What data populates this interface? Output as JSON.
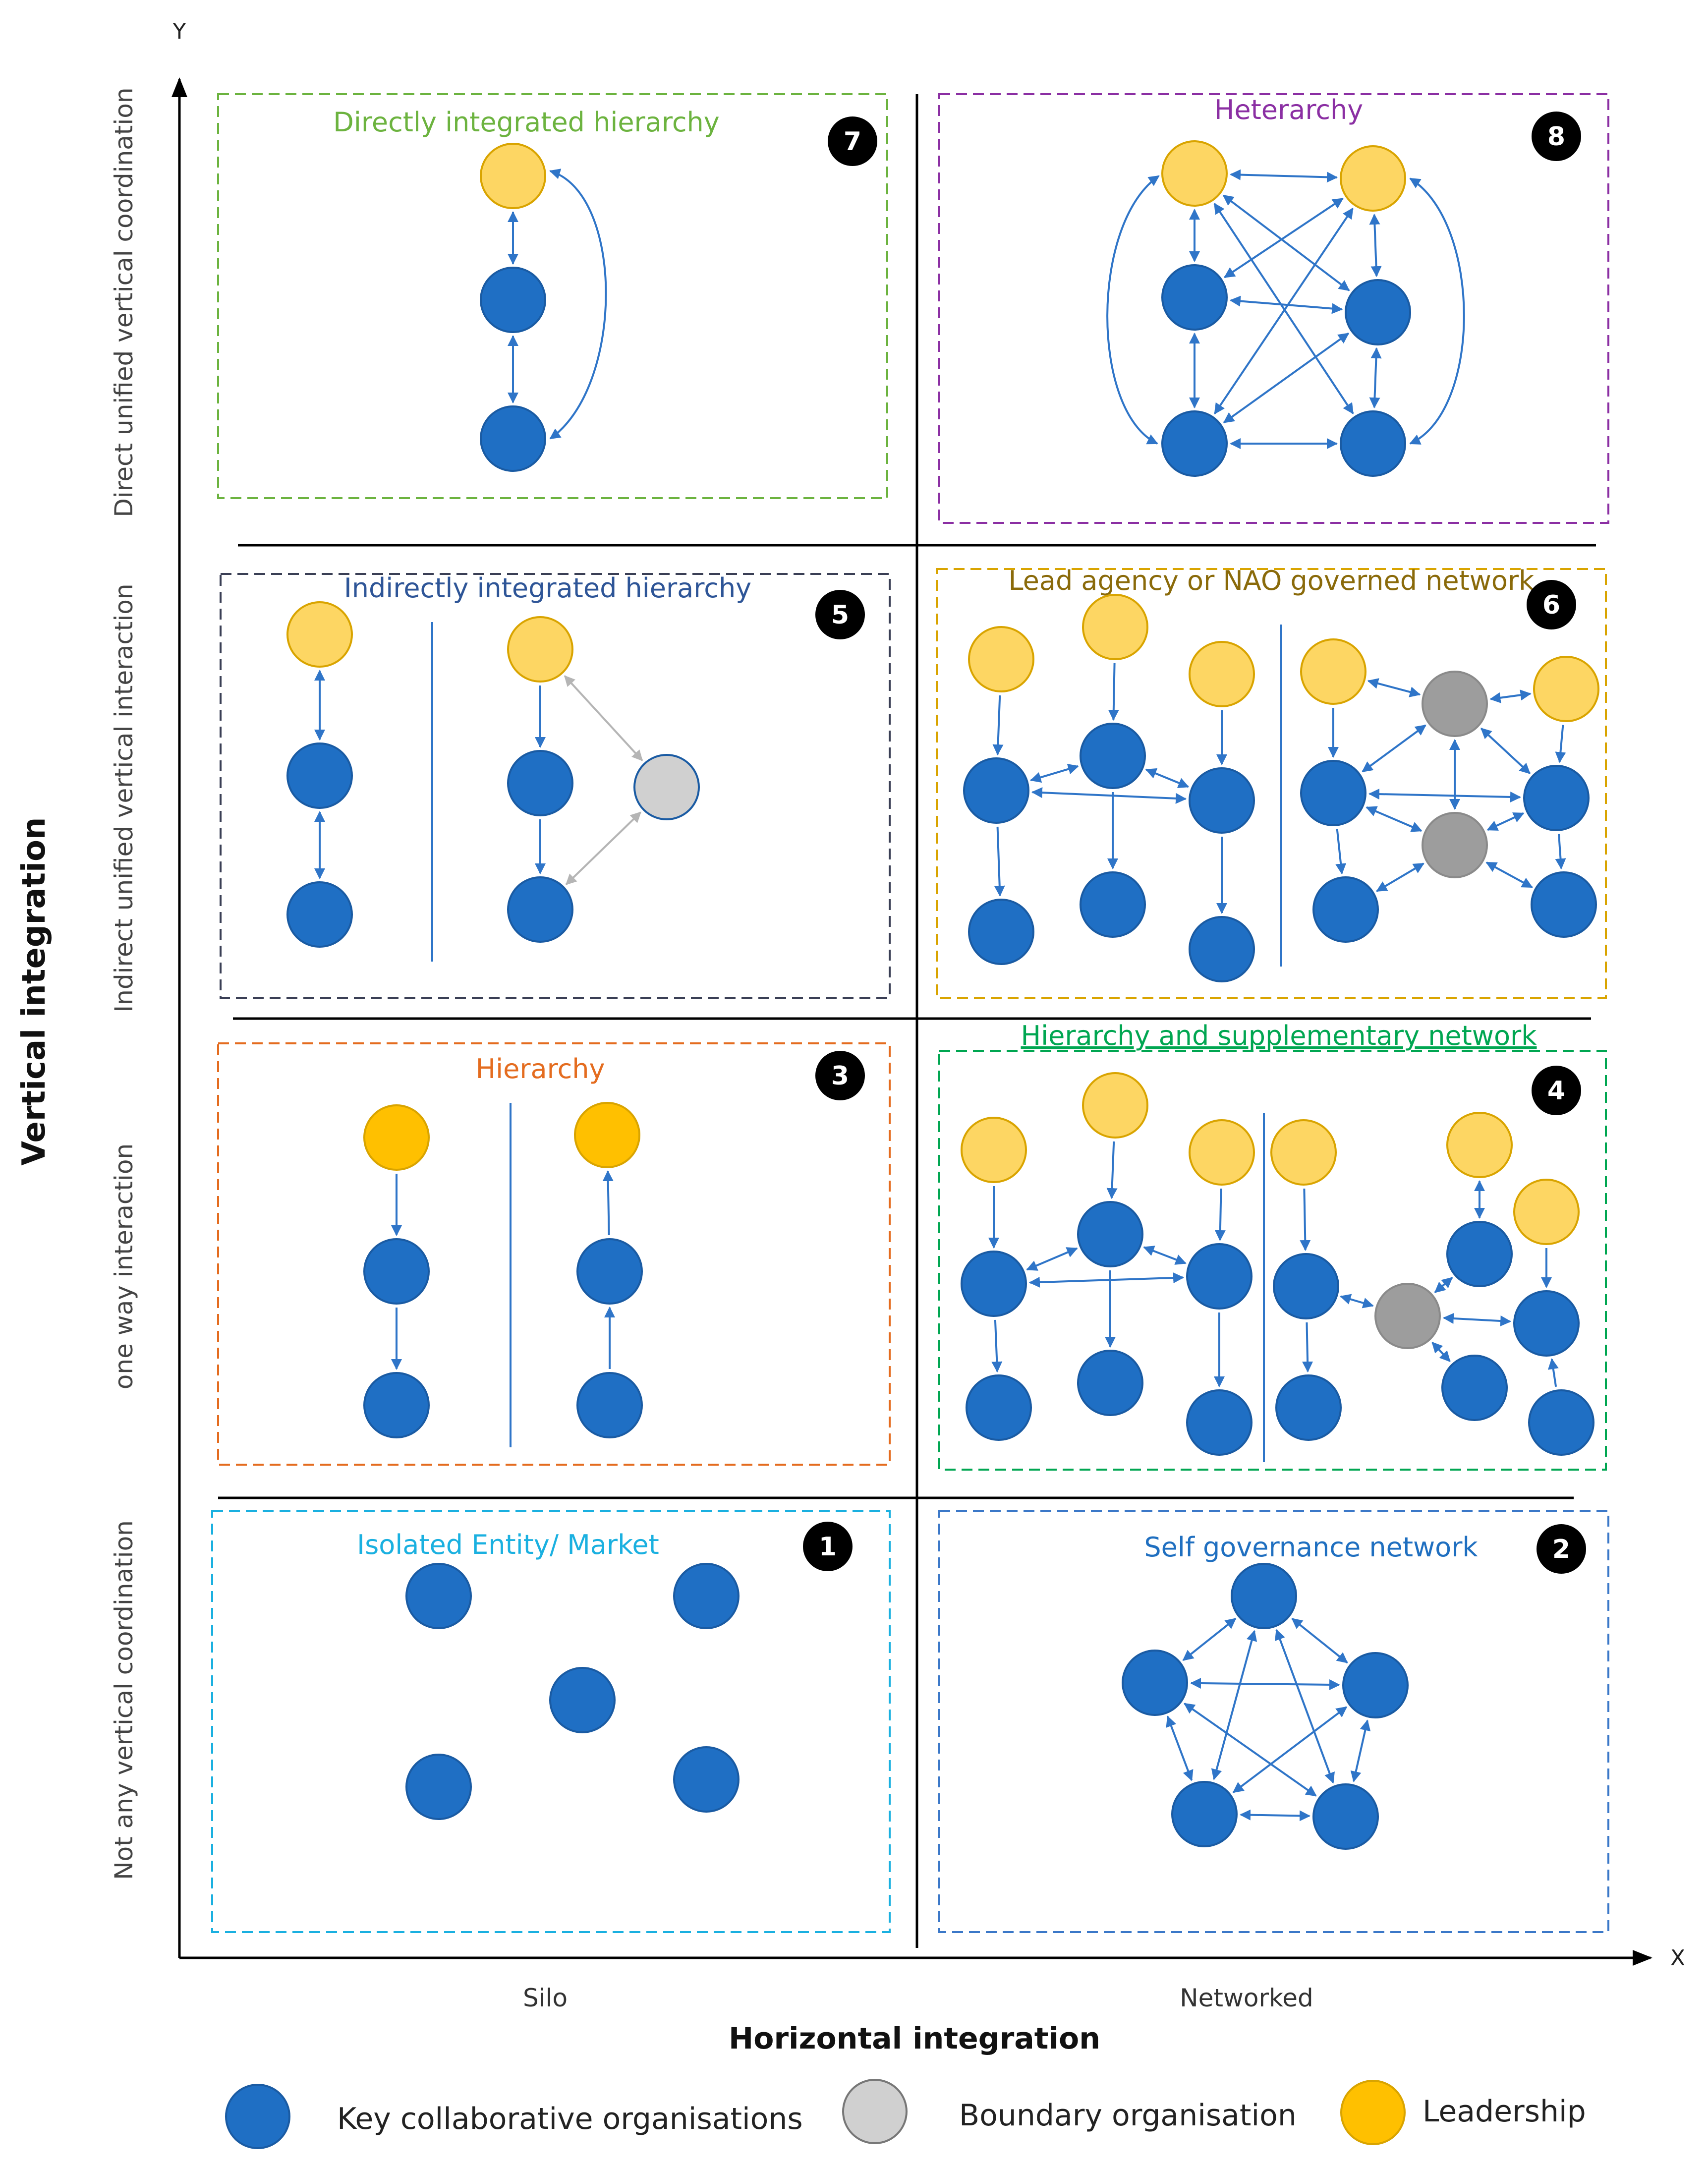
{
  "axes": {
    "y_label": "Y",
    "x_label": "X",
    "vertical_title": "Vertical integration",
    "horizontal_title": "Horizontal integration",
    "column_labels": {
      "silo": "Silo",
      "networked": "Networked"
    },
    "row_labels": {
      "row4": "Direct unified vertical coordination",
      "row3": "Indirect unified vertical interaction",
      "row2": "one way interaction",
      "row1": "Not  any vertical  coordination"
    }
  },
  "panels": {
    "p7": {
      "number": "7",
      "title": "Directly integrated hierarchy",
      "color": "#6cb33f"
    },
    "p8": {
      "number": "8",
      "title": "Heterarchy",
      "color": "#8b2fa3"
    },
    "p5": {
      "number": "5",
      "title": "Indirectly integrated hierarchy",
      "color": "#2e5597"
    },
    "p6": {
      "number": "6",
      "title": "Lead agency or NAO governed network",
      "color": "#8a6a0a"
    },
    "p3": {
      "number": "3",
      "title": "Hierarchy",
      "color": "#e46c1f"
    },
    "p4": {
      "number": "4",
      "title": "Hierarchy and supplementary network",
      "color": "#00a651"
    },
    "p1": {
      "number": "1",
      "title": "Isolated Entity/ Market",
      "color": "#1ab0e0"
    },
    "p2": {
      "number": "2",
      "title": "Self governance network",
      "color": "#1f6fc0"
    }
  },
  "legend": {
    "key": "Key collaborative organisations",
    "boundary": "Boundary organisation",
    "leadership": "Leadership"
  },
  "colors": {
    "key_fill": "#1f6fc4",
    "key_stroke": "#1a5ba3",
    "leader_fill": "#fdd663",
    "leader_stroke": "#d9a400",
    "leader_strong_fill": "#ffc000",
    "boundary_fill": "#9d9d9d",
    "boundary_light_fill": "#d0d0d0",
    "arrow": "#2f75c8",
    "arrow_grey": "#b5b5b5"
  }
}
